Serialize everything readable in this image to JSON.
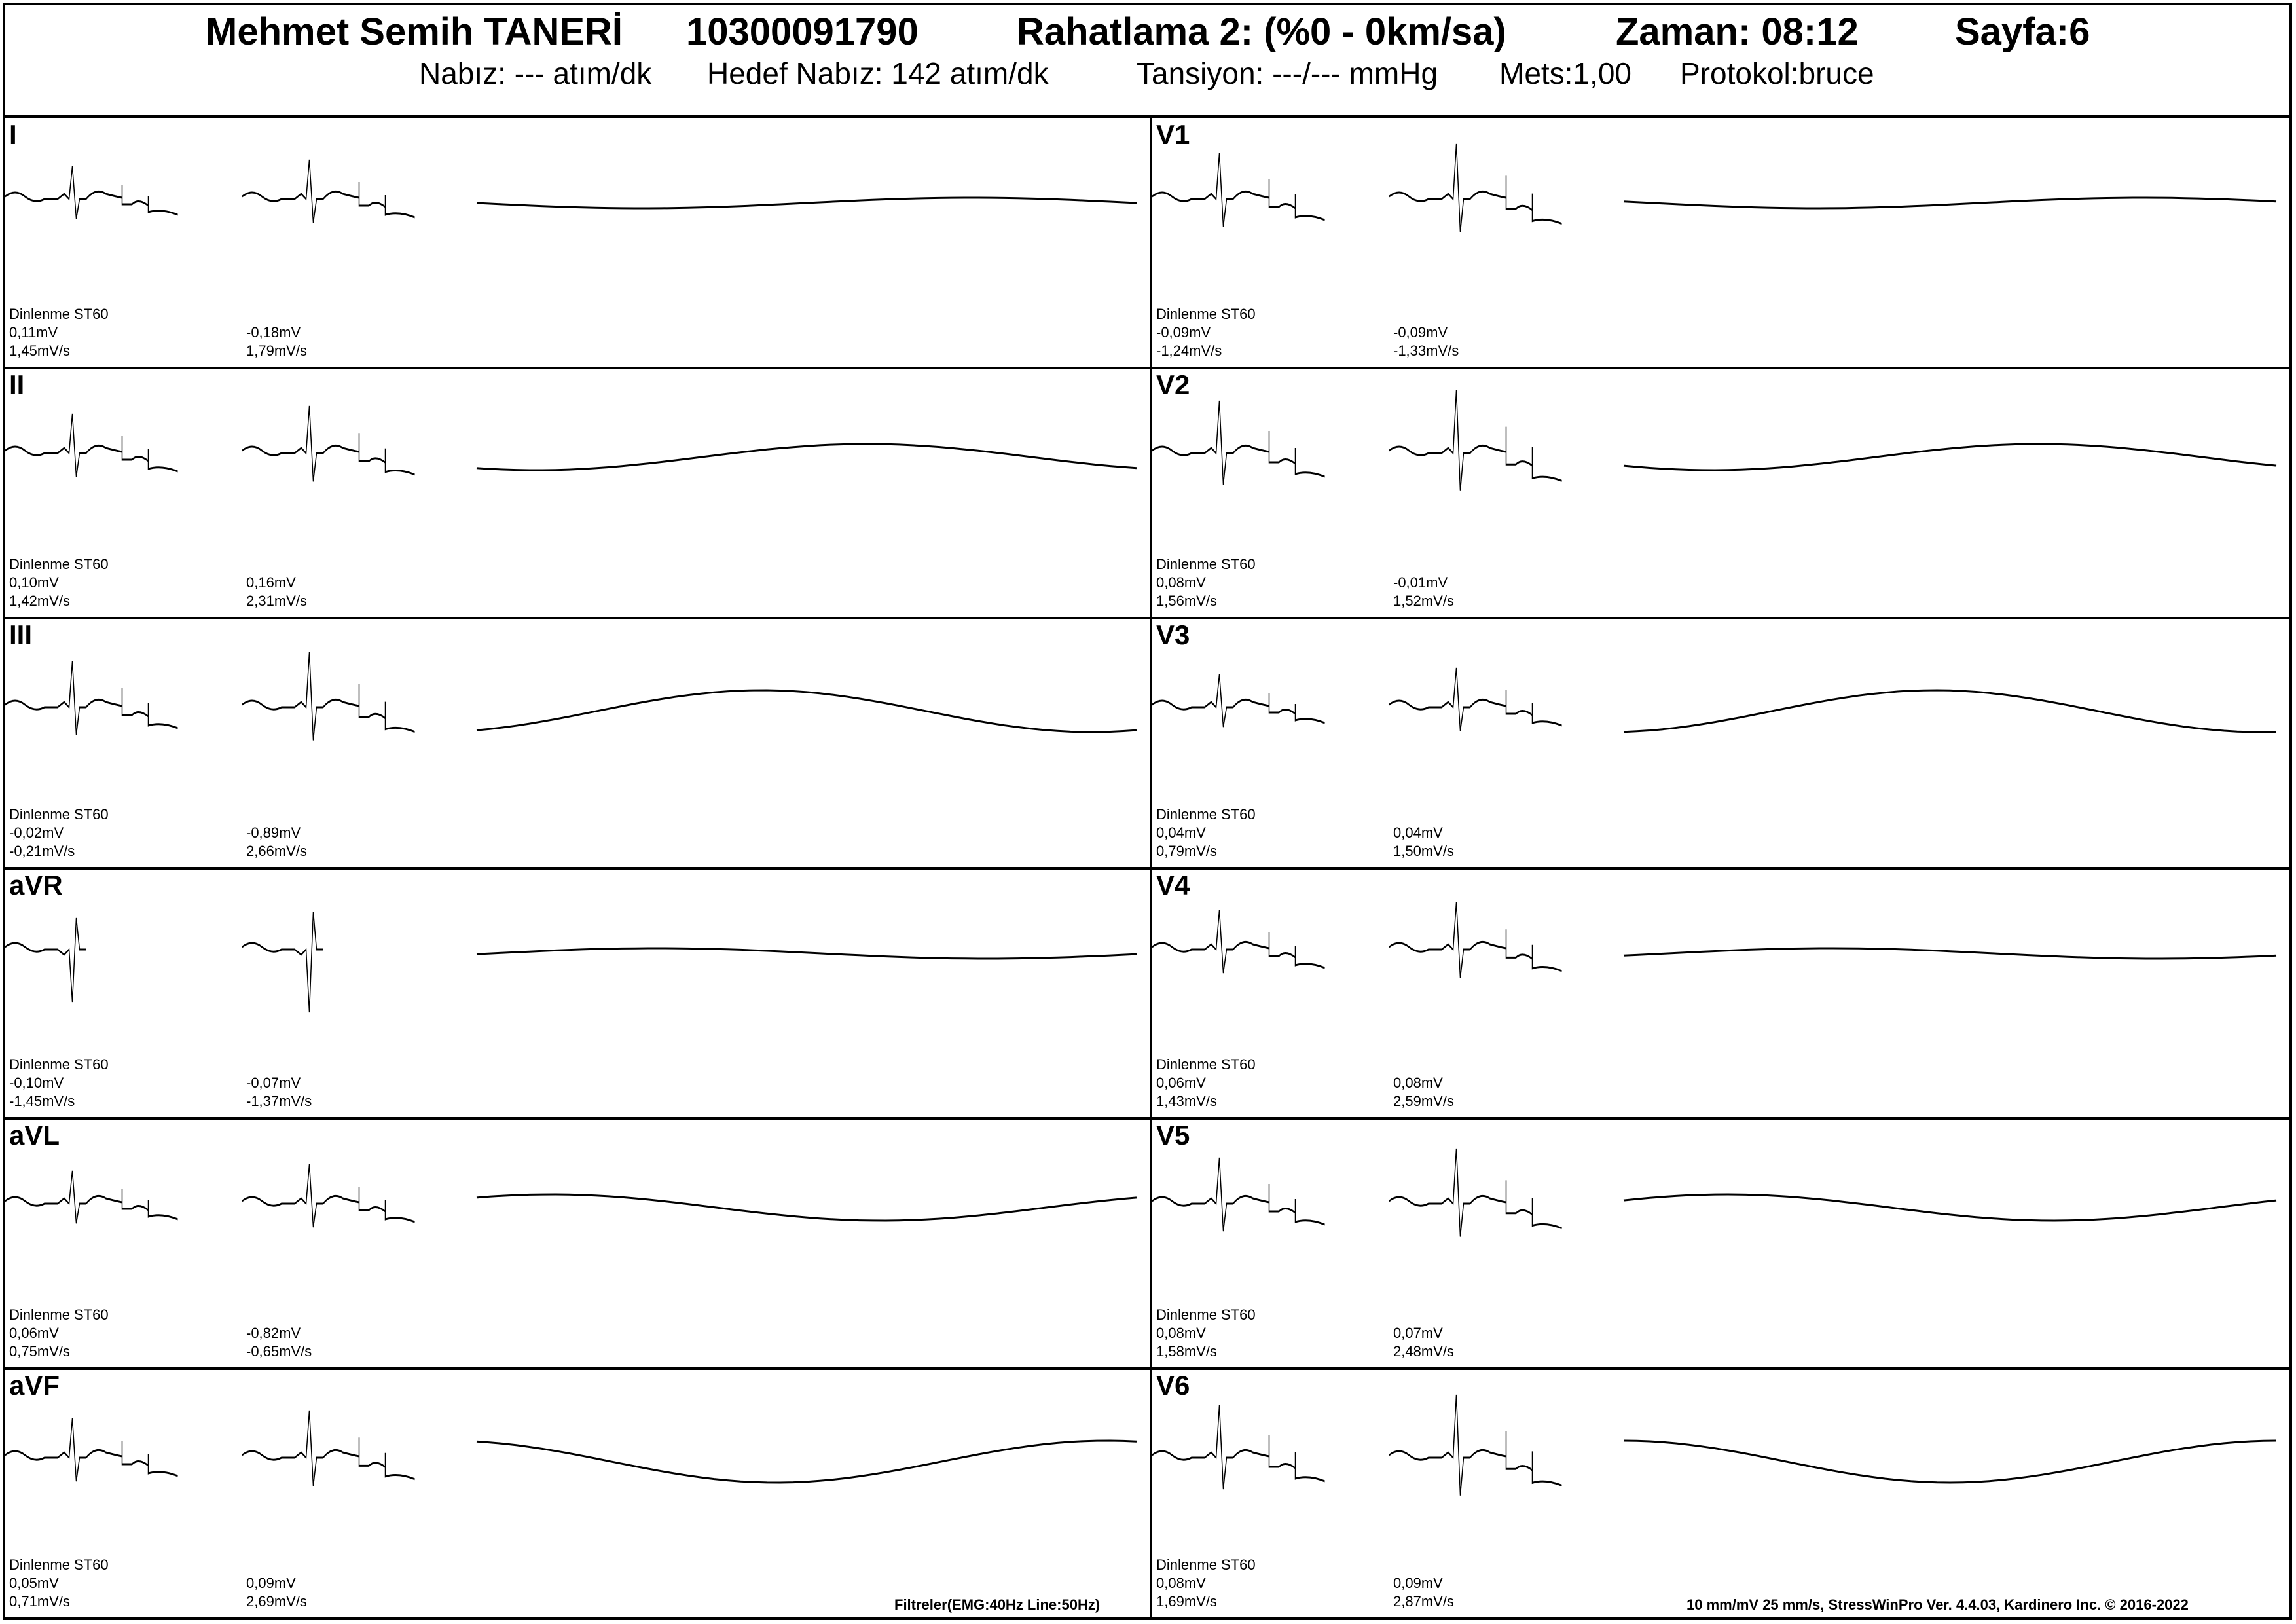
{
  "header": {
    "patient_name": "Mehmet Semih  TANERİ",
    "patient_id": "10300091790",
    "stage": "Rahatlama 2: (%0 - 0km/sa)",
    "time": "Zaman: 08:12",
    "page": "Sayfa:6",
    "pulse": "Nabız: --- atım/dk",
    "target_pulse": "Hedef Nabız: 142 atım/dk",
    "blood_pressure": "Tansiyon: ---/--- mmHg",
    "mets": "Mets:1,00",
    "protocol": "Protokol:bruce"
  },
  "leads": [
    {
      "name": "I",
      "rest_label": "Dinlenme ST60",
      "rest_mv": "0,11mV",
      "rest_slope": "1,45mV/s",
      "cur_mv": "-0,18mV",
      "cur_slope": "1,79mV/s"
    },
    {
      "name": "II",
      "rest_label": "Dinlenme ST60",
      "rest_mv": "0,10mV",
      "rest_slope": "1,42mV/s",
      "cur_mv": "0,16mV",
      "cur_slope": "2,31mV/s"
    },
    {
      "name": "III",
      "rest_label": "Dinlenme ST60",
      "rest_mv": "-0,02mV",
      "rest_slope": "-0,21mV/s",
      "cur_mv": "-0,89mV",
      "cur_slope": "2,66mV/s"
    },
    {
      "name": "aVR",
      "rest_label": "Dinlenme ST60",
      "rest_mv": "-0,10mV",
      "rest_slope": "-1,45mV/s",
      "cur_mv": "-0,07mV",
      "cur_slope": "-1,37mV/s"
    },
    {
      "name": "aVL",
      "rest_label": "Dinlenme ST60",
      "rest_mv": "0,06mV",
      "rest_slope": "0,75mV/s",
      "cur_mv": "-0,82mV",
      "cur_slope": "-0,65mV/s"
    },
    {
      "name": "aVF",
      "rest_label": "Dinlenme ST60",
      "rest_mv": "0,05mV",
      "rest_slope": "0,71mV/s",
      "cur_mv": "0,09mV",
      "cur_slope": "2,69mV/s"
    },
    {
      "name": "V1",
      "rest_label": "Dinlenme ST60",
      "rest_mv": "-0,09mV",
      "rest_slope": "-1,24mV/s",
      "cur_mv": "-0,09mV",
      "cur_slope": "-1,33mV/s"
    },
    {
      "name": "V2",
      "rest_label": "Dinlenme ST60",
      "rest_mv": "0,08mV",
      "rest_slope": "1,56mV/s",
      "cur_mv": "-0,01mV",
      "cur_slope": "1,52mV/s"
    },
    {
      "name": "V3",
      "rest_label": "Dinlenme ST60",
      "rest_mv": "0,04mV",
      "rest_slope": "0,79mV/s",
      "cur_mv": "0,04mV",
      "cur_slope": "1,50mV/s"
    },
    {
      "name": "V4",
      "rest_label": "Dinlenme ST60",
      "rest_mv": "0,06mV",
      "rest_slope": "1,43mV/s",
      "cur_mv": "0,08mV",
      "cur_slope": "2,59mV/s"
    },
    {
      "name": "V5",
      "rest_label": "Dinlenme ST60",
      "rest_mv": "0,08mV",
      "rest_slope": "1,58mV/s",
      "cur_mv": "0,07mV",
      "cur_slope": "2,48mV/s"
    },
    {
      "name": "V6",
      "rest_label": "Dinlenme ST60",
      "rest_mv": "0,08mV",
      "rest_slope": "1,69mV/s",
      "cur_mv": "0,09mV",
      "cur_slope": "2,87mV/s"
    }
  ],
  "footer": {
    "filters": "Filtreler(EMG:40Hz  Line:50Hz)",
    "info": "10 mm/mV  25 mm/s,   StressWinPro Ver. 4.4.03,  Kardinero Inc. © 2016-2022"
  }
}
